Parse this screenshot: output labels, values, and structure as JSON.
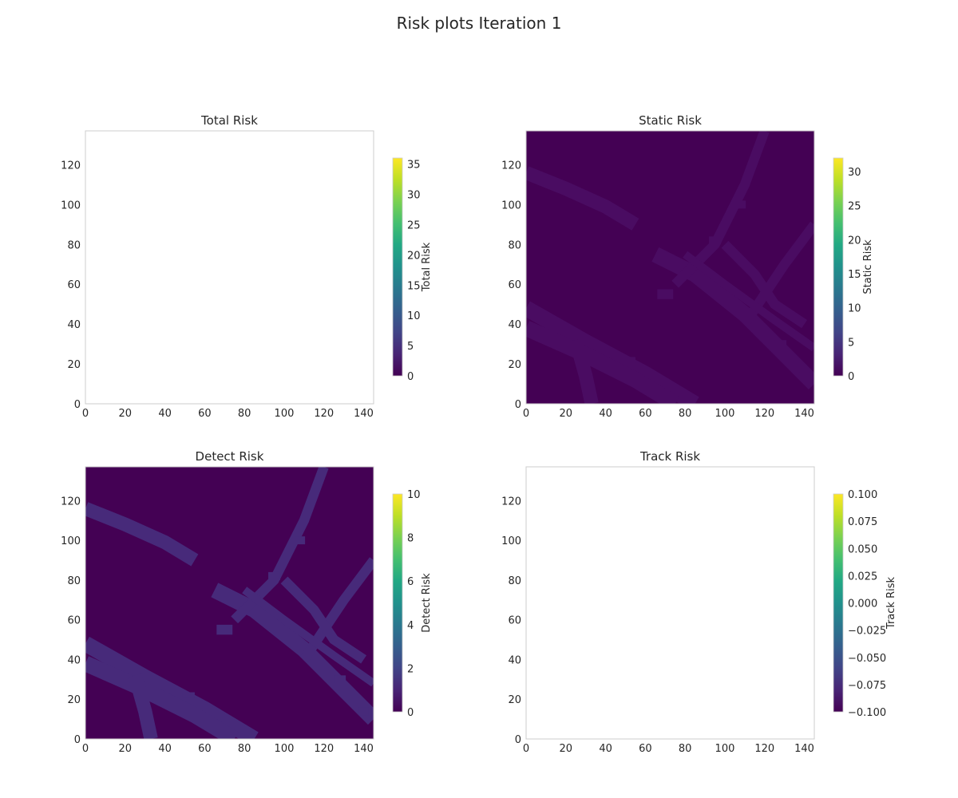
{
  "figure": {
    "title": "Risk plots Iteration 1"
  },
  "chart_data": [
    {
      "type": "heatmap",
      "title": "Total Risk",
      "colorbar_label": "Total Risk",
      "xlim": [
        0,
        145
      ],
      "ylim": [
        0,
        137
      ],
      "x_ticks": [
        "0",
        "20",
        "40",
        "60",
        "80",
        "100",
        "120",
        "140"
      ],
      "y_ticks": [
        "0",
        "20",
        "40",
        "60",
        "80",
        "100",
        "120"
      ],
      "colorbar_range": [
        0,
        36
      ],
      "colorbar_ticks": [
        "0",
        "5",
        "10",
        "15",
        "20",
        "25",
        "30",
        "35"
      ],
      "colormap": "viridis",
      "content": "empty",
      "grid": false
    },
    {
      "type": "heatmap",
      "title": "Static Risk",
      "colorbar_label": "Static Risk",
      "xlim": [
        0,
        145
      ],
      "ylim": [
        0,
        137
      ],
      "x_ticks": [
        "0",
        "20",
        "40",
        "60",
        "80",
        "100",
        "120",
        "140"
      ],
      "y_ticks": [
        "0",
        "20",
        "40",
        "60",
        "80",
        "100",
        "120"
      ],
      "colorbar_range": [
        0,
        32
      ],
      "colorbar_ticks": [
        "0",
        "5",
        "10",
        "15",
        "20",
        "25",
        "30"
      ],
      "colormap": "viridis",
      "background_color": "#440154",
      "feature_color": "#4a0c62",
      "content": "road-map",
      "grid": false
    },
    {
      "type": "heatmap",
      "title": "Detect Risk",
      "colorbar_label": "Detect Risk",
      "xlim": [
        0,
        145
      ],
      "ylim": [
        0,
        137
      ],
      "x_ticks": [
        "0",
        "20",
        "40",
        "60",
        "80",
        "100",
        "120",
        "140"
      ],
      "y_ticks": [
        "0",
        "20",
        "40",
        "60",
        "80",
        "100",
        "120"
      ],
      "colorbar_range": [
        0,
        10
      ],
      "colorbar_ticks": [
        "0",
        "2",
        "4",
        "6",
        "8",
        "10"
      ],
      "colormap": "viridis",
      "background_color": "#440154",
      "feature_color": "#472a7a",
      "content": "road-map",
      "grid": false
    },
    {
      "type": "heatmap",
      "title": "Track Risk",
      "colorbar_label": "Track Risk",
      "xlim": [
        0,
        145
      ],
      "ylim": [
        0,
        137
      ],
      "x_ticks": [
        "0",
        "20",
        "40",
        "60",
        "80",
        "100",
        "120",
        "140"
      ],
      "y_ticks": [
        "0",
        "20",
        "40",
        "60",
        "80",
        "100",
        "120"
      ],
      "colorbar_range": [
        -0.1,
        0.1
      ],
      "colorbar_ticks": [
        "−0.100",
        "−0.075",
        "−0.050",
        "−0.025",
        "0.000",
        "0.025",
        "0.050",
        "0.075",
        "0.100"
      ],
      "colormap": "viridis",
      "content": "empty",
      "grid": false
    }
  ]
}
